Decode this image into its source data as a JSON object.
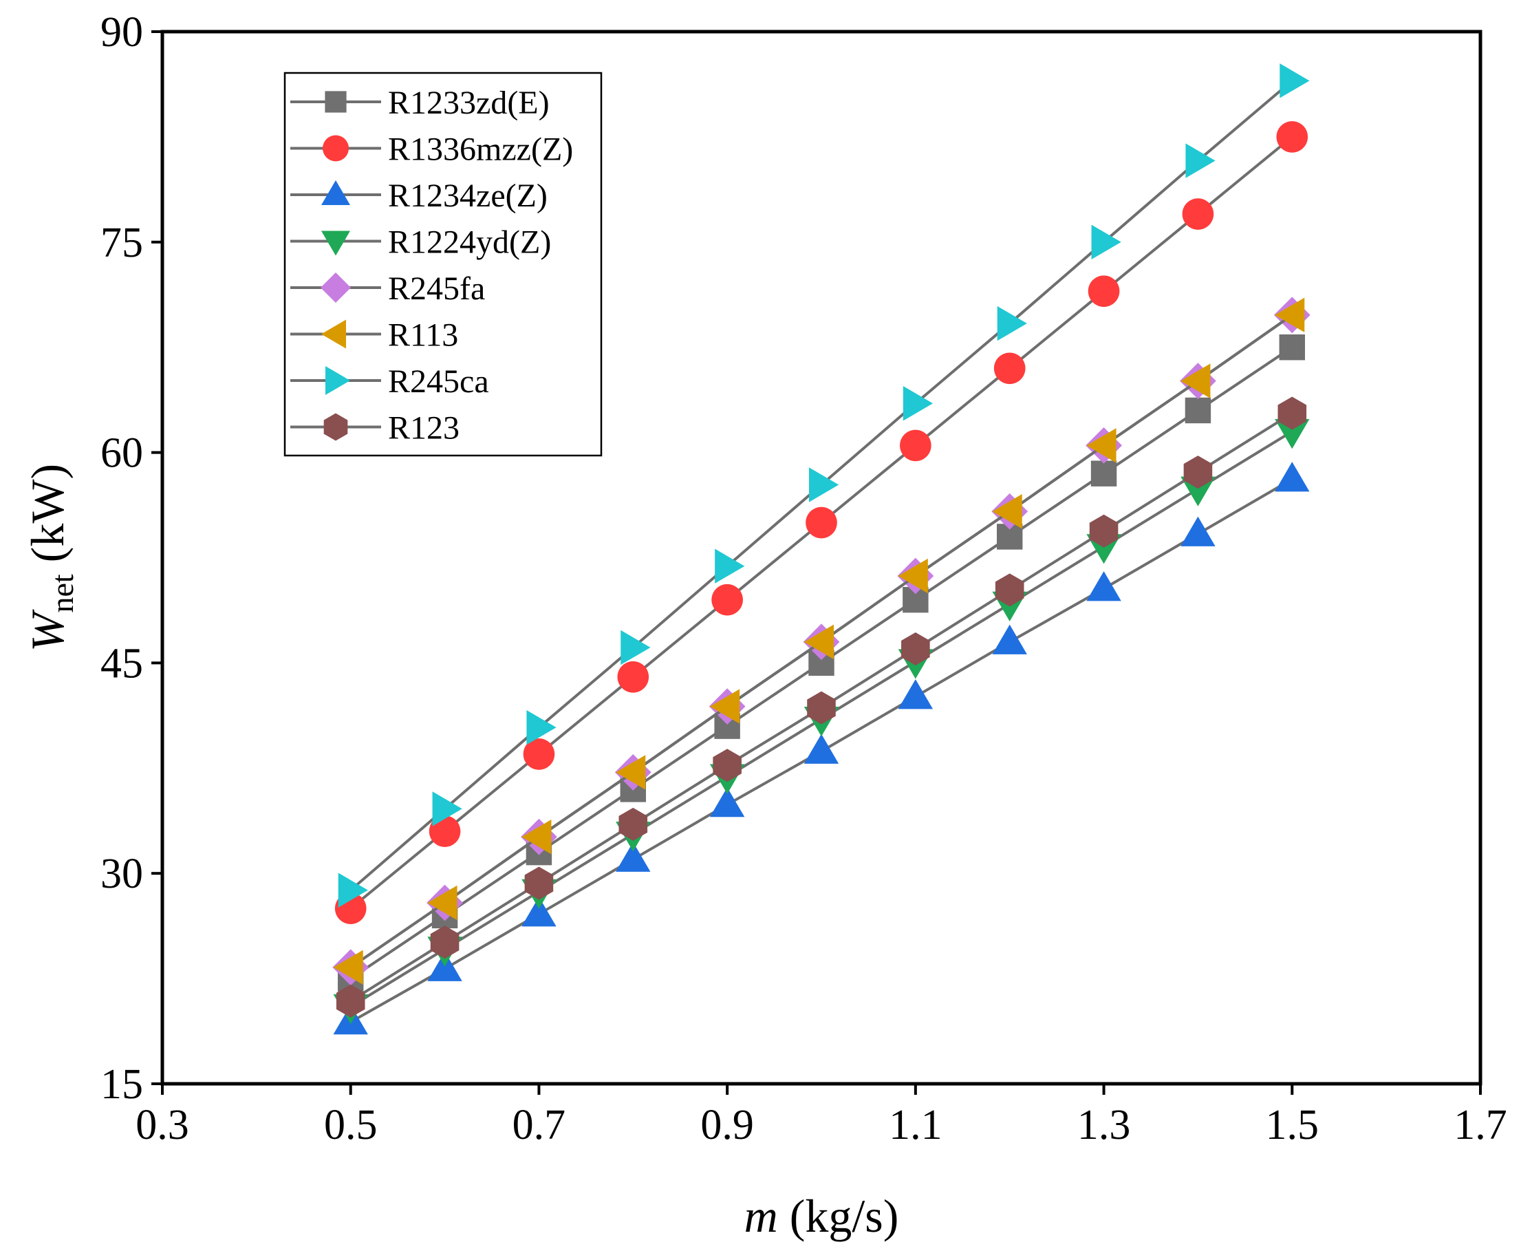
{
  "chart_data": {
    "type": "line",
    "xlabel": {
      "var": "m",
      "unit": " (kg/s)"
    },
    "ylabel": {
      "var": "W",
      "sub": "net",
      "unit": " (kW)"
    },
    "xlim": [
      0.3,
      1.7
    ],
    "ylim": [
      15,
      90
    ],
    "xticks": [
      "0.3",
      "0.5",
      "0.7",
      "0.9",
      "1.1",
      "1.3",
      "1.5",
      "1.7"
    ],
    "yticks": [
      "15",
      "30",
      "45",
      "60",
      "75",
      "90"
    ],
    "x": [
      0.5,
      0.6,
      0.7,
      0.8,
      0.9,
      1.0,
      1.1,
      1.2,
      1.3,
      1.4,
      1.5
    ],
    "grid": false,
    "legend_position": "top-left",
    "line_color": "#6e6e6e",
    "series": [
      {
        "name": "R1233zd(E)",
        "marker": "square",
        "color": "#707070",
        "values": [
          22.5,
          27.0,
          31.5,
          36.0,
          40.5,
          45.0,
          49.5,
          54.0,
          58.5,
          63.0,
          67.5
        ]
      },
      {
        "name": "R1336mzz(Z)",
        "marker": "circle",
        "color": "#ff3b3b",
        "values": [
          27.5,
          33.0,
          38.5,
          44.0,
          49.5,
          55.0,
          60.5,
          66.0,
          71.5,
          77.0,
          82.5
        ]
      },
      {
        "name": "R1234ze(Z)",
        "marker": "triangle-up",
        "color": "#1f6fe0",
        "values": [
          19.4,
          23.2,
          27.1,
          31.0,
          34.9,
          38.7,
          42.6,
          46.5,
          50.3,
          54.2,
          58.1
        ]
      },
      {
        "name": "R1224yd(Z)",
        "marker": "triangle-down",
        "color": "#1fa855",
        "values": [
          20.5,
          24.6,
          28.7,
          32.8,
          36.9,
          41.0,
          45.1,
          49.2,
          53.3,
          57.4,
          61.5
        ]
      },
      {
        "name": "R245fa",
        "marker": "diamond",
        "color": "#c87de0",
        "values": [
          23.3,
          27.9,
          32.6,
          37.2,
          41.9,
          46.5,
          51.2,
          55.8,
          60.5,
          65.1,
          69.8
        ]
      },
      {
        "name": "R113",
        "marker": "triangle-left",
        "color": "#d99a00",
        "values": [
          23.3,
          27.9,
          32.6,
          37.2,
          41.9,
          46.5,
          51.2,
          55.8,
          60.5,
          65.1,
          69.8
        ]
      },
      {
        "name": "R245ca",
        "marker": "triangle-right",
        "color": "#1fc8d2",
        "values": [
          28.8,
          34.6,
          40.4,
          46.1,
          51.9,
          57.7,
          63.5,
          69.2,
          75.0,
          80.8,
          86.5
        ]
      },
      {
        "name": "R123",
        "marker": "hexagon",
        "color": "#8a4f4f",
        "values": [
          20.9,
          25.1,
          29.3,
          33.5,
          37.7,
          41.8,
          46.0,
          50.2,
          54.4,
          58.6,
          62.8
        ]
      }
    ]
  }
}
